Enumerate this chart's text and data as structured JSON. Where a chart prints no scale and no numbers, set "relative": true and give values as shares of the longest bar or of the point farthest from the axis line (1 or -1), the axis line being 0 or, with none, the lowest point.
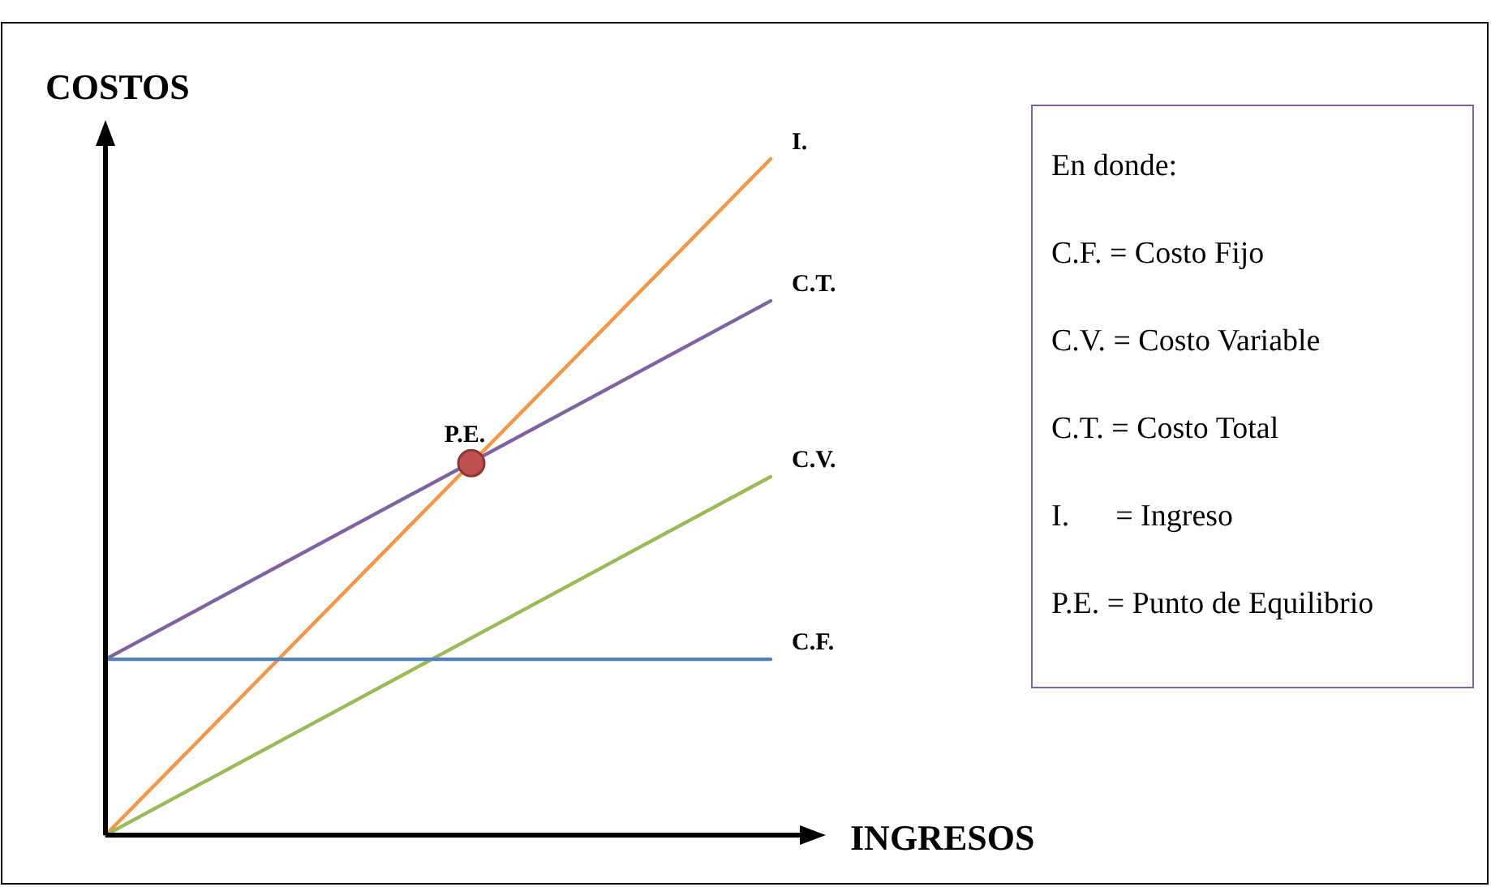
{
  "chart_data": {
    "type": "line",
    "relative": true,
    "xlabel": "INGRESOS",
    "ylabel": "COSTOS",
    "categories": [
      null,
      null
    ],
    "series": [
      {
        "name": "I.",
        "color": "#f79646",
        "values": [
          0,
          1
        ]
      },
      {
        "name": "C.T.",
        "color": "#8064a2",
        "values": [
          0.26,
          0.79
        ]
      },
      {
        "name": "C.V.",
        "color": "#9bbb59",
        "values": [
          0,
          0.53
        ]
      },
      {
        "name": "C.F.",
        "color": "#4f81bd",
        "values": [
          0.26,
          0.26
        ]
      }
    ],
    "annotations": [
      {
        "text": "P.E.",
        "y": 0.55
      },
      "En donde:",
      "C.F. = Costo Fijo",
      "C.V. = Costo Variable",
      "C.T. = Costo Total",
      "I.      = Ingreso",
      "P.E. = Punto de Equilibrio"
    ]
  }
}
